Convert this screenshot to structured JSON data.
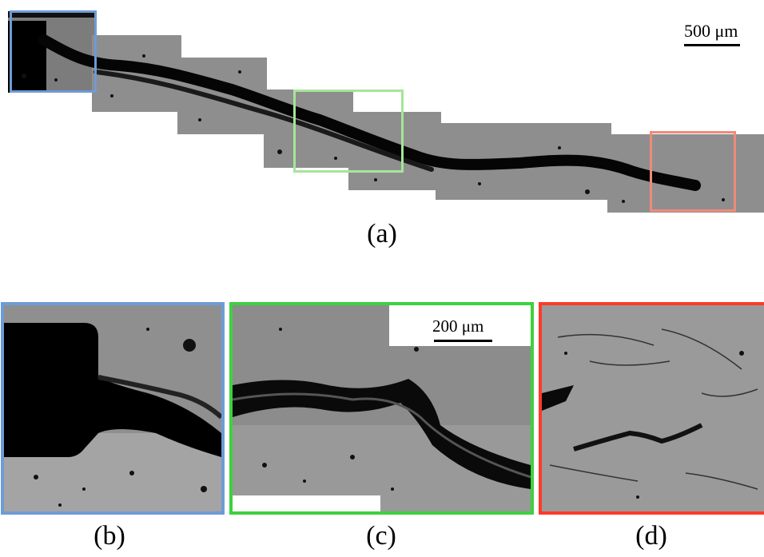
{
  "figure": {
    "captions": {
      "a": "(a)",
      "b": "(b)",
      "c": "(c)",
      "d": "(d)"
    },
    "scale_bars": {
      "overview": "500 μm",
      "detail": "200 μm"
    },
    "colors": {
      "blue": "#6e9bd6",
      "green": "#3ed13e",
      "red": "#ff3a2a",
      "green_light": "#a6e59a",
      "red_light": "#f08a7a"
    }
  }
}
